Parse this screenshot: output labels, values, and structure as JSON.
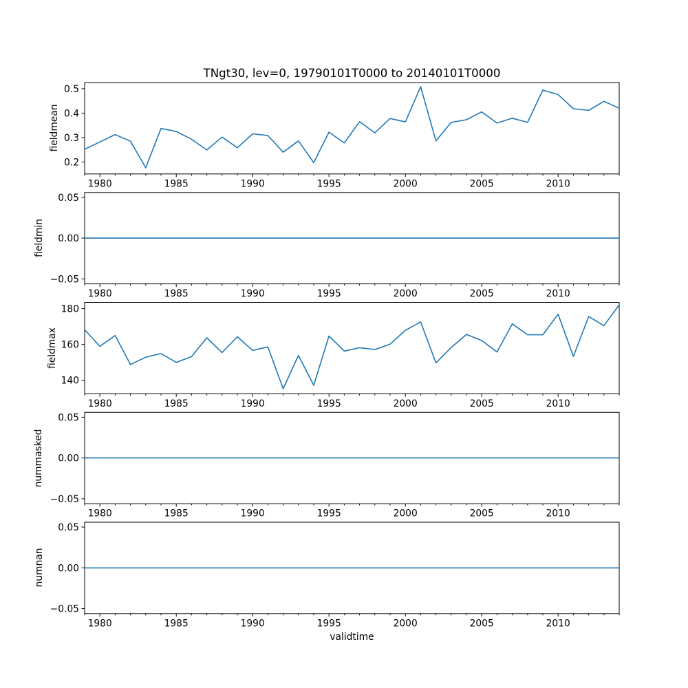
{
  "figure": {
    "title": "TNgt30, lev=0, 19790101T0000 to 20140101T0000",
    "xlabel": "validtime"
  },
  "chart_data": {
    "type": "line",
    "title": "TNgt30, lev=0, 19790101T0000 to 20140101T0000",
    "xlabel": "validtime",
    "line_color": "#1f77b4",
    "background_color": "#ffffff",
    "grid": false,
    "xlim": [
      1979,
      2014
    ],
    "x_ticks_major": [
      1980,
      1985,
      1990,
      1995,
      2000,
      2005,
      2010
    ],
    "x_minor_ticks_every_year": true,
    "x": [
      1979,
      1980,
      1981,
      1982,
      1983,
      1984,
      1985,
      1986,
      1987,
      1988,
      1989,
      1990,
      1991,
      1992,
      1993,
      1994,
      1995,
      1996,
      1997,
      1998,
      1999,
      2000,
      2001,
      2002,
      2003,
      2004,
      2005,
      2006,
      2007,
      2008,
      2009,
      2010,
      2011,
      2012,
      2013,
      2014
    ],
    "subplots": [
      {
        "ylabel": "fieldmean",
        "ylim": [
          0.151,
          0.525
        ],
        "ytick_values": [
          0.2,
          0.3,
          0.4,
          0.5
        ],
        "ytick_labels": [
          "0.2",
          "0.3",
          "0.4",
          "0.5"
        ],
        "values": [
          0.252,
          0.282,
          0.312,
          0.285,
          0.176,
          0.337,
          0.325,
          0.293,
          0.249,
          0.302,
          0.258,
          0.315,
          0.308,
          0.24,
          0.286,
          0.197,
          0.322,
          0.278,
          0.365,
          0.319,
          0.378,
          0.364,
          0.508,
          0.286,
          0.362,
          0.373,
          0.405,
          0.359,
          0.379,
          0.362,
          0.494,
          0.476,
          0.418,
          0.411,
          0.448,
          0.42
        ]
      },
      {
        "ylabel": "fieldmin",
        "ylim": [
          -0.056,
          0.056
        ],
        "ytick_values": [
          0.05,
          0.0,
          -0.05
        ],
        "ytick_labels": [
          "0.05",
          "0.00",
          "−0.05"
        ],
        "values": [
          0,
          0,
          0,
          0,
          0,
          0,
          0,
          0,
          0,
          0,
          0,
          0,
          0,
          0,
          0,
          0,
          0,
          0,
          0,
          0,
          0,
          0,
          0,
          0,
          0,
          0,
          0,
          0,
          0,
          0,
          0,
          0,
          0,
          0,
          0,
          0
        ]
      },
      {
        "ylabel": "fieldmax",
        "ylim": [
          132.5,
          183.5
        ],
        "ytick_values": [
          140,
          160,
          180
        ],
        "ytick_labels": [
          "140",
          "160",
          "180"
        ],
        "values": [
          168.2,
          159.0,
          165.0,
          148.8,
          152.9,
          154.9,
          150.0,
          153.2,
          163.7,
          155.5,
          164.3,
          156.7,
          158.6,
          135.3,
          153.9,
          137.2,
          164.7,
          156.3,
          158.2,
          157.2,
          160.2,
          167.9,
          172.6,
          149.7,
          158.3,
          165.6,
          162.2,
          155.8,
          171.5,
          165.4,
          165.4,
          176.9,
          153.3,
          175.6,
          170.5,
          182.1
        ]
      },
      {
        "ylabel": "nummasked",
        "ylim": [
          -0.056,
          0.056
        ],
        "ytick_values": [
          0.05,
          0.0,
          -0.05
        ],
        "ytick_labels": [
          "0.05",
          "0.00",
          "−0.05"
        ],
        "values": [
          0,
          0,
          0,
          0,
          0,
          0,
          0,
          0,
          0,
          0,
          0,
          0,
          0,
          0,
          0,
          0,
          0,
          0,
          0,
          0,
          0,
          0,
          0,
          0,
          0,
          0,
          0,
          0,
          0,
          0,
          0,
          0,
          0,
          0,
          0,
          0
        ]
      },
      {
        "ylabel": "numnan",
        "ylim": [
          -0.056,
          0.056
        ],
        "ytick_values": [
          0.05,
          0.0,
          -0.05
        ],
        "ytick_labels": [
          "0.05",
          "0.00",
          "−0.05"
        ],
        "values": [
          0,
          0,
          0,
          0,
          0,
          0,
          0,
          0,
          0,
          0,
          0,
          0,
          0,
          0,
          0,
          0,
          0,
          0,
          0,
          0,
          0,
          0,
          0,
          0,
          0,
          0,
          0,
          0,
          0,
          0,
          0,
          0,
          0,
          0,
          0,
          0
        ]
      }
    ]
  }
}
